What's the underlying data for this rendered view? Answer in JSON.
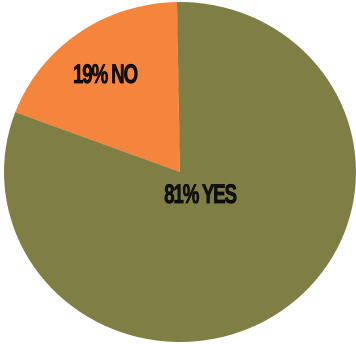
{
  "chart_data": {
    "type": "pie",
    "values": [
      81,
      19
    ],
    "value_labels": [
      "81% YES",
      "19% NO"
    ],
    "colors": [
      "#7f7f45",
      "#f5843d"
    ]
  }
}
